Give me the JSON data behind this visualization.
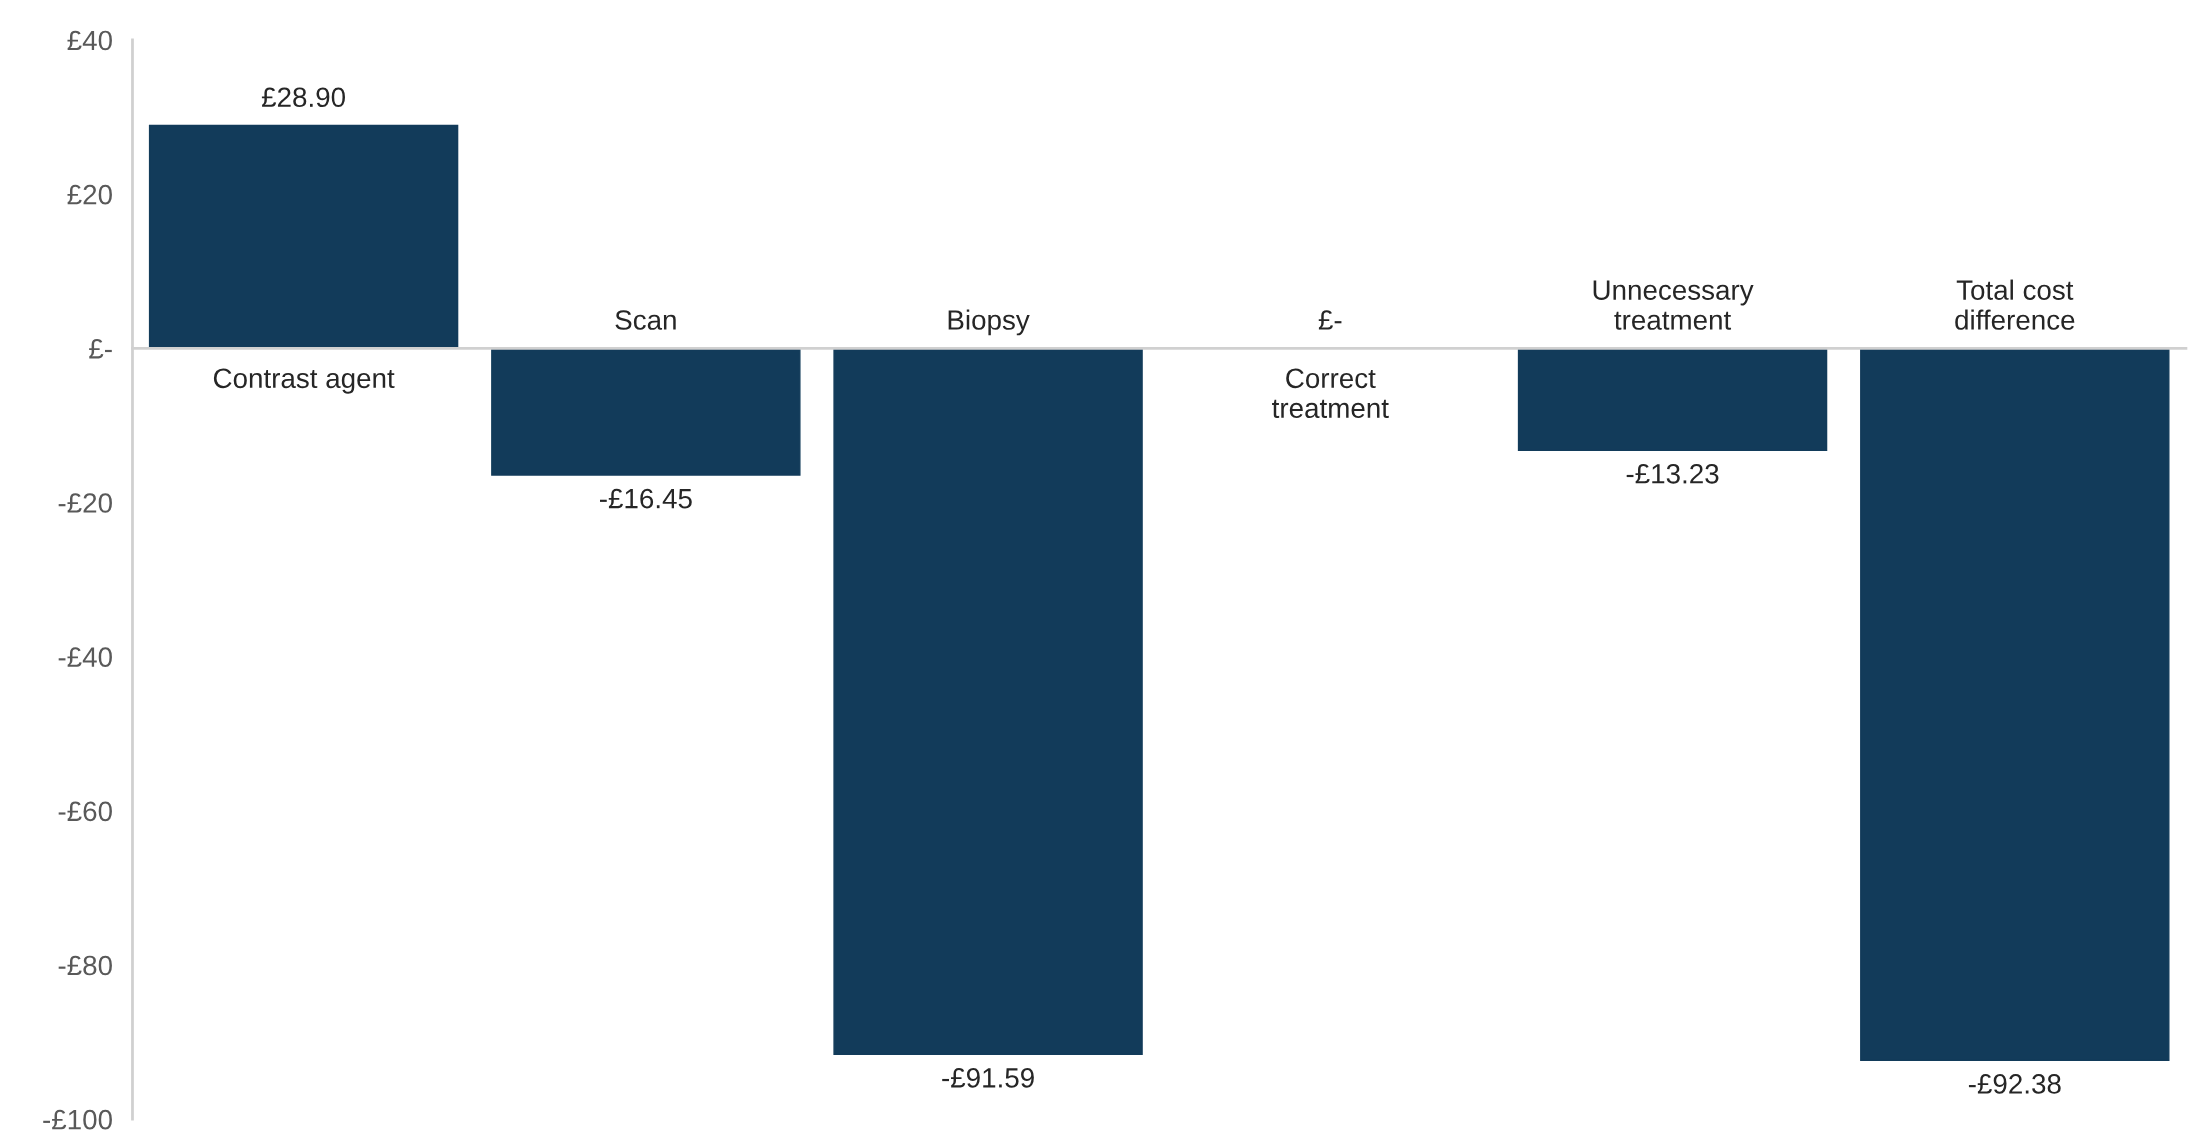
{
  "chart_data": {
    "type": "bar",
    "categories": [
      "Contrast agent",
      "Scan",
      "Biopsy",
      "Correct\ntreatment",
      "Unnecessary\ntreatment",
      "Total cost\ndifference"
    ],
    "values": [
      28.9,
      -16.45,
      -91.59,
      0,
      -13.23,
      -92.38
    ],
    "value_labels": [
      "£28.90",
      "-£16.45",
      "-£91.59",
      "£-",
      "-£13.23",
      "-£92.38"
    ],
    "color": "#123b5a",
    "ylim": [
      -100,
      40
    ],
    "yticks": [
      {
        "value": 40,
        "label": "£40"
      },
      {
        "value": 20,
        "label": "£20"
      },
      {
        "value": 0,
        "label": "£-"
      },
      {
        "value": -20,
        "label": "-£20"
      },
      {
        "value": -40,
        "label": "-£40"
      },
      {
        "value": -60,
        "label": "-£60"
      },
      {
        "value": -80,
        "label": "-£80"
      },
      {
        "value": -100,
        "label": "-£100"
      }
    ],
    "grid": false,
    "legend": false
  }
}
